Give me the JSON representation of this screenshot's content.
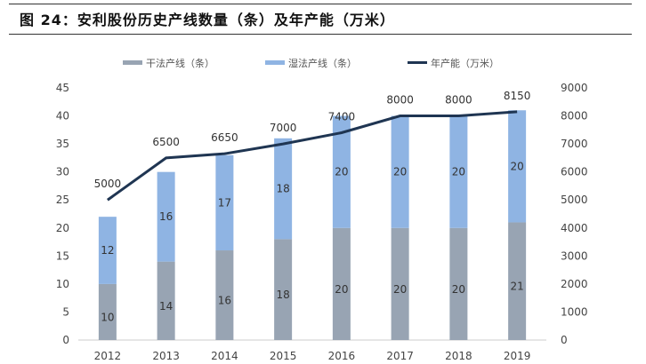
{
  "title": "图 24：安利股份历史产线数量（条）及年产能（万米）",
  "chart_data": {
    "type": "bar+line",
    "categories": [
      "2012",
      "2013",
      "2014",
      "2015",
      "2016",
      "2017",
      "2018",
      "2019"
    ],
    "series": [
      {
        "name": "干法产线（条）",
        "type": "stacked-bar",
        "axis": "left",
        "color": "#98a4b3",
        "values": [
          10,
          14,
          16,
          18,
          20,
          20,
          20,
          21
        ]
      },
      {
        "name": "湿法产线（条）",
        "type": "stacked-bar",
        "axis": "left",
        "color": "#8fb4e3",
        "values": [
          12,
          16,
          17,
          18,
          20,
          20,
          20,
          20
        ]
      },
      {
        "name": "年产能（万米）",
        "type": "line",
        "axis": "right",
        "color": "#1f3552",
        "values": [
          5000,
          6500,
          6650,
          7000,
          7400,
          8000,
          8000,
          8150
        ]
      }
    ],
    "y_left": {
      "min": 0,
      "max": 45,
      "ticks": [
        0,
        5,
        10,
        15,
        20,
        25,
        30,
        35,
        40,
        45
      ]
    },
    "y_right": {
      "min": 0,
      "max": 9000,
      "ticks": [
        0,
        1000,
        2000,
        3000,
        4000,
        5000,
        6000,
        7000,
        8000,
        9000
      ]
    },
    "legend": "top",
    "grid": false
  }
}
